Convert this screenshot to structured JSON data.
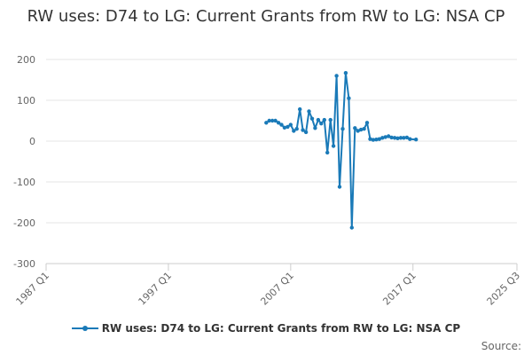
{
  "chart_data": {
    "type": "line",
    "title": "RW uses: D74 to LG: Current Grants from RW to LG: NSA CP",
    "xlabel": "",
    "ylabel": "",
    "x_ticks": [
      "1987 Q1",
      "1997 Q1",
      "2007 Q1",
      "2017 Q1",
      "2025 Q3"
    ],
    "ylim": [
      -300,
      200
    ],
    "y_ticks": [
      -300,
      -200,
      -100,
      0,
      100,
      200
    ],
    "grid": true,
    "legend_position": "bottom",
    "series": [
      {
        "name": "RW uses: D74 to LG: Current Grants from RW to LG: NSA CP",
        "color": "#1a7ab8",
        "points": [
          [
            "2005 Q1",
            45
          ],
          [
            "2005 Q2",
            50
          ],
          [
            "2005 Q3",
            50
          ],
          [
            "2005 Q4",
            50
          ],
          [
            "2006 Q1",
            45
          ],
          [
            "2006 Q2",
            40
          ],
          [
            "2006 Q3",
            33
          ],
          [
            "2006 Q4",
            35
          ],
          [
            "2007 Q1",
            40
          ],
          [
            "2007 Q2",
            25
          ],
          [
            "2007 Q3",
            30
          ],
          [
            "2007 Q4",
            78
          ],
          [
            "2008 Q1",
            27
          ],
          [
            "2008 Q2",
            22
          ],
          [
            "2008 Q3",
            73
          ],
          [
            "2008 Q4",
            55
          ],
          [
            "2009 Q1",
            32
          ],
          [
            "2009 Q2",
            52
          ],
          [
            "2009 Q3",
            43
          ],
          [
            "2009 Q4",
            52
          ],
          [
            "2010 Q1",
            -28
          ],
          [
            "2010 Q2",
            52
          ],
          [
            "2010 Q3",
            -12
          ],
          [
            "2010 Q4",
            160
          ],
          [
            "2011 Q1",
            -112
          ],
          [
            "2011 Q2",
            30
          ],
          [
            "2011 Q3",
            167
          ],
          [
            "2011 Q4",
            105
          ],
          [
            "2012 Q1",
            -212
          ],
          [
            "2012 Q2",
            32
          ],
          [
            "2012 Q3",
            25
          ],
          [
            "2012 Q4",
            28
          ],
          [
            "2013 Q1",
            30
          ],
          [
            "2013 Q2",
            45
          ],
          [
            "2013 Q3",
            5
          ],
          [
            "2013 Q4",
            3
          ],
          [
            "2014 Q1",
            4
          ],
          [
            "2014 Q2",
            5
          ],
          [
            "2014 Q3",
            8
          ],
          [
            "2014 Q4",
            10
          ],
          [
            "2015 Q1",
            12
          ],
          [
            "2015 Q2",
            9
          ],
          [
            "2015 Q3",
            8
          ],
          [
            "2015 Q4",
            7
          ],
          [
            "2016 Q1",
            8
          ],
          [
            "2016 Q2",
            8
          ],
          [
            "2016 Q3",
            9
          ],
          [
            "2016 Q4",
            5
          ],
          [
            "2017 Q2",
            4
          ]
        ]
      }
    ]
  },
  "source_label": "Source:"
}
